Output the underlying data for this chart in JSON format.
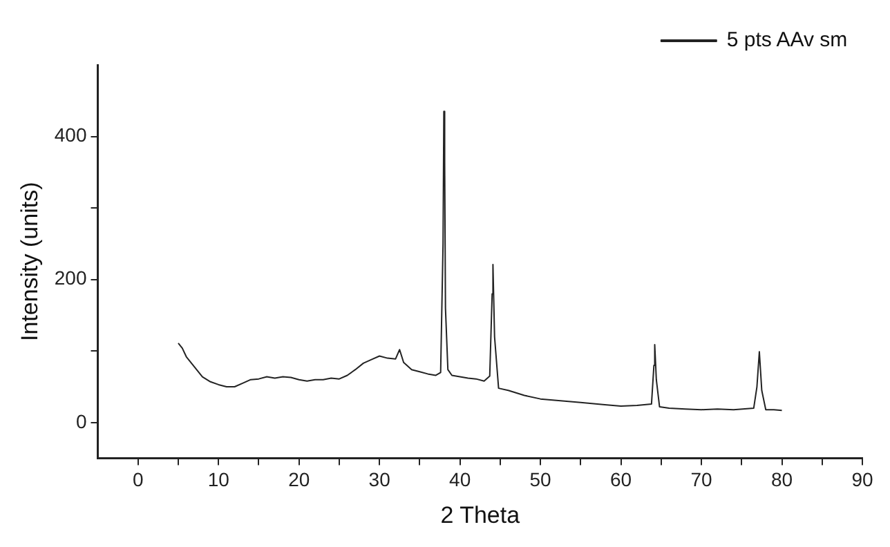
{
  "chart_data": {
    "type": "line",
    "xlabel": "2 Theta",
    "ylabel": "Intensity (units)",
    "xlim": [
      -5,
      90
    ],
    "ylim": [
      -50,
      500
    ],
    "xticks": [
      0,
      {
        "value": 5,
        "label": null
      },
      10,
      {
        "value": 15,
        "label": null
      },
      20,
      {
        "value": 25,
        "label": null
      },
      30,
      {
        "value": 35,
        "label": null
      },
      40,
      {
        "value": 45,
        "label": null
      },
      50,
      {
        "value": 55,
        "label": null
      },
      60,
      {
        "value": 65,
        "label": null
      },
      70,
      {
        "value": 75,
        "label": null
      },
      80,
      {
        "value": 85,
        "label": null
      },
      90
    ],
    "yticks": [
      0,
      {
        "value": 100,
        "label": null
      },
      200,
      {
        "value": 300,
        "label": null
      },
      400
    ],
    "grid": false,
    "legend": "top right",
    "marker": "none",
    "line_style": "solid",
    "series": [
      {
        "name": "5 pts AAv sm",
        "color": "#222222",
        "x": [
          5,
          5.5,
          6,
          7,
          8,
          9,
          10,
          11,
          12,
          13,
          14,
          15,
          16,
          17,
          18,
          19,
          20,
          21,
          22,
          23,
          24,
          25,
          26,
          27,
          28,
          29,
          30,
          31,
          32,
          32.5,
          33,
          34,
          35,
          36,
          37,
          37.6,
          37.9,
          38.0,
          38.1,
          38.2,
          38.5,
          39,
          40,
          41,
          42,
          43,
          43.7,
          44.0,
          44.1,
          44.3,
          44.8,
          46,
          48,
          50,
          52,
          55,
          58,
          60,
          62,
          63.8,
          64.1,
          64.2,
          64.4,
          64.8,
          66,
          68,
          70,
          72,
          74,
          76.5,
          76.9,
          77.2,
          77.5,
          78,
          79,
          80
        ],
        "values": [
          111,
          104,
          92,
          78,
          64,
          57,
          53,
          50,
          50,
          55,
          60,
          61,
          64,
          62,
          64,
          63,
          60,
          58,
          60,
          60,
          62,
          61,
          66,
          74,
          83,
          88,
          93,
          90,
          89,
          102,
          84,
          74,
          71,
          68,
          66,
          70,
          250,
          435,
          365,
          160,
          74,
          66,
          64,
          62,
          61,
          58,
          65,
          180,
          221,
          120,
          48,
          45,
          38,
          33,
          31,
          28,
          25,
          23,
          24,
          26,
          80,
          109,
          60,
          22,
          20,
          19,
          18,
          19,
          18,
          20,
          50,
          99,
          45,
          18,
          18,
          17
        ]
      }
    ]
  }
}
